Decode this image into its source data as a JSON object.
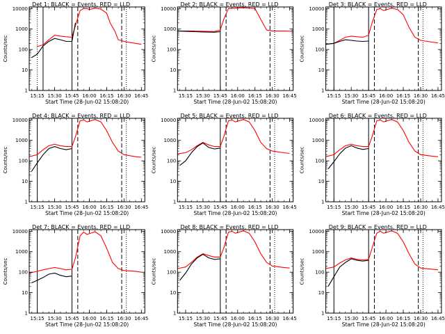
{
  "chart_data": [
    {
      "type": "line",
      "title": "Det 1: BLACK = Events, RED = LLD",
      "xlabel": "Start Time (28-Jun-02 15:08:20)",
      "ylabel": "Counts/sec",
      "yscale": "log",
      "ylim": [
        1,
        12000
      ],
      "xlim": [
        "15:08",
        "16:48"
      ],
      "xticks": [
        "15:15",
        "15:30",
        "15:45",
        "16:00",
        "16:15",
        "16:30",
        "16:45"
      ],
      "yticks": [
        "1",
        "10",
        "100",
        "1000",
        "10000"
      ],
      "series": [
        {
          "color": "#ff0000",
          "x": [
            "15:15",
            "15:20",
            "15:25",
            "15:30",
            "15:35",
            "15:40",
            "15:45",
            "15:48",
            "15:52",
            "15:55",
            "15:58",
            "16:00",
            "16:05",
            "16:10",
            "16:15",
            "16:18",
            "16:22",
            "16:25",
            "16:30",
            "16:35",
            "16:40",
            "16:45"
          ],
          "y": [
            140,
            170,
            300,
            500,
            450,
            420,
            400,
            1500,
            8000,
            10000,
            10000,
            9000,
            10500,
            9500,
            6000,
            2000,
            800,
            300,
            250,
            220,
            200,
            180
          ]
        },
        {
          "color": "#000000",
          "x": [
            "15:10",
            "15:15",
            "15:20",
            "15:25",
            "15:30",
            "15:35",
            "15:40",
            "15:45",
            "15:48"
          ],
          "y": [
            40,
            60,
            150,
            250,
            350,
            300,
            250,
            250,
            2000
          ]
        }
      ],
      "vlines_solid": [
        "15:20",
        "15:45"
      ],
      "vlines_dashed": [
        "15:50",
        "16:28"
      ],
      "vlines_dotted": [
        "15:15",
        "16:32"
      ]
    },
    {
      "type": "line",
      "title": "Det 2: BLACK = Events, RED = LLD",
      "xlabel": "Start Time (28-Jun-02 15:08:20)",
      "ylabel": "Counts/sec",
      "yscale": "log",
      "ylim": [
        1,
        12000
      ],
      "xlim": [
        "15:08",
        "16:48"
      ],
      "xticks": [
        "15:15",
        "15:30",
        "15:45",
        "16:00",
        "16:15",
        "16:30",
        "16:45"
      ],
      "yticks": [
        "1",
        "10",
        "100",
        "1000",
        "10000"
      ],
      "series": [
        {
          "color": "#ff0000",
          "x": [
            "15:08",
            "15:20",
            "15:30",
            "15:40",
            "15:45",
            "15:48",
            "15:52",
            "16:05",
            "16:15",
            "16:20",
            "16:25",
            "16:30",
            "16:40",
            "16:48"
          ],
          "y": [
            800,
            800,
            780,
            760,
            900,
            3000,
            10000,
            11000,
            10000,
            3000,
            900,
            800,
            800,
            780
          ]
        },
        {
          "color": "#000000",
          "x": [
            "15:08",
            "15:20",
            "15:30",
            "15:40",
            "15:45"
          ],
          "y": [
            800,
            760,
            720,
            700,
            750
          ]
        }
      ],
      "vlines_solid": [
        "15:45"
      ],
      "vlines_dashed": [
        "15:50",
        "16:28"
      ],
      "vlines_dotted": [
        "16:32"
      ]
    },
    {
      "type": "line",
      "title": "Det 3: BLACK = Events, RED = LLD",
      "xlabel": "Start Time (28-Jun-02 15:08:20)",
      "ylabel": "Counts/sec",
      "yscale": "log",
      "ylim": [
        1,
        12000
      ],
      "xlim": [
        "15:08",
        "16:48"
      ],
      "xticks": [
        "15:15",
        "15:30",
        "15:45",
        "16:00",
        "16:15",
        "16:30",
        "16:45"
      ],
      "yticks": [
        "1",
        "10",
        "100",
        "1000",
        "10000"
      ],
      "series": [
        {
          "color": "#ff0000",
          "x": [
            "15:08",
            "15:15",
            "15:20",
            "15:25",
            "15:30",
            "15:35",
            "15:40",
            "15:45",
            "15:48",
            "15:52",
            "15:55",
            "15:58",
            "16:05",
            "16:10",
            "16:15",
            "16:20",
            "16:25",
            "16:30",
            "16:40",
            "16:45"
          ],
          "y": [
            180,
            200,
            280,
            400,
            450,
            420,
            400,
            500,
            2000,
            9000,
            10000,
            8000,
            10500,
            9000,
            5000,
            1200,
            400,
            280,
            230,
            210
          ]
        },
        {
          "color": "#000000",
          "x": [
            "15:08",
            "15:15",
            "15:20",
            "15:25",
            "15:30",
            "15:35",
            "15:40",
            "15:45"
          ],
          "y": [
            180,
            200,
            250,
            300,
            280,
            260,
            250,
            260
          ]
        }
      ],
      "vlines_solid": [
        "15:15",
        "15:45"
      ],
      "vlines_dashed": [
        "15:50",
        "16:28"
      ],
      "vlines_dotted": [
        "16:32"
      ]
    },
    {
      "type": "line",
      "title": "Det 4: BLACK = Events, RED = LLD",
      "xlabel": "Start Time (28-Jun-02 15:08:20)",
      "ylabel": "Counts/sec",
      "yscale": "log",
      "ylim": [
        1,
        12000
      ],
      "xlim": [
        "15:08",
        "16:48"
      ],
      "xticks": [
        "15:15",
        "15:30",
        "15:45",
        "16:00",
        "16:15",
        "16:30",
        "16:45"
      ],
      "yticks": [
        "1",
        "10",
        "100",
        "1000",
        "10000"
      ],
      "series": [
        {
          "color": "#ff0000",
          "x": [
            "15:08",
            "15:15",
            "15:20",
            "15:25",
            "15:30",
            "15:35",
            "15:40",
            "15:45",
            "15:48",
            "15:52",
            "15:55",
            "15:58",
            "16:05",
            "16:10",
            "16:15",
            "16:20",
            "16:25",
            "16:30",
            "16:40",
            "16:45"
          ],
          "y": [
            160,
            200,
            350,
            550,
            650,
            550,
            500,
            500,
            1500,
            9000,
            10000,
            8000,
            10500,
            8000,
            3000,
            800,
            300,
            200,
            160,
            150
          ]
        },
        {
          "color": "#000000",
          "x": [
            "15:10",
            "15:15",
            "15:20",
            "15:25",
            "15:30",
            "15:35",
            "15:40",
            "15:45"
          ],
          "y": [
            30,
            80,
            200,
            400,
            500,
            400,
            350,
            400
          ]
        }
      ],
      "vlines_solid": [
        "15:15",
        "15:45"
      ],
      "vlines_dashed": [
        "15:50",
        "16:28"
      ],
      "vlines_dotted": [
        "16:32"
      ]
    },
    {
      "type": "line",
      "title": "Det 5: BLACK = Events, RED = LLD",
      "xlabel": "Start Time (28-Jun-02 15:08:20)",
      "ylabel": "Counts/sec",
      "yscale": "log",
      "ylim": [
        1,
        12000
      ],
      "xlim": [
        "15:08",
        "16:48"
      ],
      "xticks": [
        "15:15",
        "15:30",
        "15:45",
        "16:00",
        "16:15",
        "16:30",
        "16:45"
      ],
      "yticks": [
        "1",
        "10",
        "100",
        "1000",
        "10000"
      ],
      "series": [
        {
          "color": "#ff0000",
          "x": [
            "15:08",
            "15:15",
            "15:20",
            "15:25",
            "15:30",
            "15:35",
            "15:40",
            "15:45",
            "15:48",
            "15:52",
            "15:55",
            "15:58",
            "16:05",
            "16:10",
            "16:15",
            "16:20",
            "16:25",
            "16:30",
            "16:40",
            "16:45"
          ],
          "y": [
            220,
            250,
            350,
            550,
            800,
            600,
            500,
            500,
            1500,
            9000,
            10000,
            8000,
            10500,
            8000,
            3000,
            800,
            400,
            300,
            250,
            230
          ]
        },
        {
          "color": "#000000",
          "x": [
            "15:10",
            "15:15",
            "15:20",
            "15:25",
            "15:30",
            "15:35",
            "15:40",
            "15:45"
          ],
          "y": [
            60,
            100,
            250,
            500,
            750,
            450,
            380,
            420
          ]
        }
      ],
      "vlines_solid": [
        "15:45"
      ],
      "vlines_dashed": [
        "15:50",
        "16:28"
      ],
      "vlines_dotted": [
        "16:32"
      ]
    },
    {
      "type": "line",
      "title": "Det 6: BLACK = Events, RED = LLD",
      "xlabel": "Start Time (28-Jun-02 15:08:20)",
      "ylabel": "Counts/sec",
      "yscale": "log",
      "ylim": [
        1,
        12000
      ],
      "xlim": [
        "15:08",
        "16:48"
      ],
      "xticks": [
        "15:15",
        "15:30",
        "15:45",
        "16:00",
        "16:15",
        "16:30",
        "16:45"
      ],
      "yticks": [
        "1",
        "10",
        "100",
        "1000",
        "10000"
      ],
      "series": [
        {
          "color": "#ff0000",
          "x": [
            "15:08",
            "15:15",
            "15:20",
            "15:25",
            "15:30",
            "15:35",
            "15:40",
            "15:45",
            "15:48",
            "15:52",
            "15:55",
            "15:58",
            "16:05",
            "16:10",
            "16:15",
            "16:20",
            "16:25",
            "16:30",
            "16:40",
            "16:45"
          ],
          "y": [
            160,
            200,
            350,
            550,
            650,
            550,
            500,
            500,
            1500,
            9000,
            10000,
            8000,
            10500,
            8000,
            3000,
            800,
            300,
            200,
            170,
            160
          ]
        },
        {
          "color": "#000000",
          "x": [
            "15:10",
            "15:15",
            "15:20",
            "15:25",
            "15:30",
            "15:35",
            "15:40",
            "15:45"
          ],
          "y": [
            40,
            90,
            220,
            420,
            550,
            420,
            360,
            400
          ]
        }
      ],
      "vlines_solid": [
        "15:15",
        "15:45"
      ],
      "vlines_dashed": [
        "15:50",
        "16:28"
      ],
      "vlines_dotted": [
        "16:32"
      ]
    },
    {
      "type": "line",
      "title": "Det 7: BLACK = Events, RED = LLD",
      "xlabel": "Start Time (28-Jun-02 15:08:20)",
      "ylabel": "Counts/sec",
      "yscale": "log",
      "ylim": [
        1,
        12000
      ],
      "xlim": [
        "15:08",
        "16:48"
      ],
      "xticks": [
        "15:15",
        "15:30",
        "15:45",
        "16:00",
        "16:15",
        "16:30",
        "16:45"
      ],
      "yticks": [
        "1",
        "10",
        "100",
        "1000",
        "10000"
      ],
      "series": [
        {
          "color": "#ff0000",
          "x": [
            "15:08",
            "15:15",
            "15:20",
            "15:25",
            "15:30",
            "15:35",
            "15:40",
            "15:45",
            "15:48",
            "15:52",
            "15:55",
            "15:58",
            "16:05",
            "16:10",
            "16:15",
            "16:20",
            "16:25",
            "16:30",
            "16:40",
            "16:45"
          ],
          "y": [
            90,
            110,
            130,
            150,
            170,
            150,
            130,
            140,
            500,
            6000,
            9000,
            7000,
            9500,
            6000,
            1500,
            300,
            150,
            120,
            110,
            100
          ]
        },
        {
          "color": "#000000",
          "x": [
            "15:10",
            "15:15",
            "15:20",
            "15:25",
            "15:30",
            "15:35",
            "15:40",
            "15:45"
          ],
          "y": [
            30,
            40,
            55,
            80,
            90,
            70,
            60,
            65
          ]
        }
      ],
      "vlines_solid": [
        "15:15",
        "15:45"
      ],
      "vlines_dashed": [
        "15:50",
        "16:28"
      ],
      "vlines_dotted": [
        "16:32"
      ]
    },
    {
      "type": "line",
      "title": "Det 8: BLACK = Events, RED = LLD",
      "xlabel": "Start Time (28-Jun-02 15:08:20)",
      "ylabel": "Counts/sec",
      "yscale": "log",
      "ylim": [
        1,
        12000
      ],
      "xlim": [
        "15:08",
        "16:48"
      ],
      "xticks": [
        "15:15",
        "15:30",
        "15:45",
        "16:00",
        "16:15",
        "16:30",
        "16:45"
      ],
      "yticks": [
        "1",
        "10",
        "100",
        "1000",
        "10000"
      ],
      "series": [
        {
          "color": "#ff0000",
          "x": [
            "15:08",
            "15:15",
            "15:20",
            "15:25",
            "15:30",
            "15:35",
            "15:40",
            "15:45",
            "15:48",
            "15:52",
            "15:55",
            "15:58",
            "16:05",
            "16:10",
            "16:15",
            "16:20",
            "16:25",
            "16:30",
            "16:40",
            "16:45"
          ],
          "y": [
            150,
            180,
            300,
            550,
            800,
            650,
            550,
            550,
            1500,
            9000,
            10000,
            8000,
            10500,
            8000,
            3000,
            800,
            300,
            200,
            170,
            160
          ]
        },
        {
          "color": "#000000",
          "x": [
            "15:10",
            "15:15",
            "15:20",
            "15:25",
            "15:30",
            "15:35",
            "15:40",
            "15:45"
          ],
          "y": [
            40,
            90,
            250,
            500,
            750,
            500,
            420,
            450
          ]
        }
      ],
      "vlines_solid": [
        "15:45"
      ],
      "vlines_dashed": [
        "15:50",
        "16:28"
      ],
      "vlines_dotted": [
        "16:32"
      ]
    },
    {
      "type": "line",
      "title": "Det 9: BLACK = Events, RED = LLD",
      "xlabel": "Start Time (28-Jun-02 15:08:20)",
      "ylabel": "Counts/sec",
      "yscale": "log",
      "ylim": [
        1,
        12000
      ],
      "xlim": [
        "15:08",
        "16:48"
      ],
      "xticks": [
        "15:15",
        "15:30",
        "15:45",
        "16:00",
        "16:15",
        "16:30",
        "16:45"
      ],
      "yticks": [
        "1",
        "10",
        "100",
        "1000",
        "10000"
      ],
      "series": [
        {
          "color": "#ff0000",
          "x": [
            "15:08",
            "15:15",
            "15:20",
            "15:25",
            "15:30",
            "15:35",
            "15:40",
            "15:45",
            "15:48",
            "15:52",
            "15:55",
            "15:58",
            "16:05",
            "16:10",
            "16:15",
            "16:20",
            "16:25",
            "16:30",
            "16:40",
            "16:45"
          ],
          "y": [
            150,
            180,
            280,
            400,
            500,
            420,
            400,
            420,
            1500,
            8000,
            10000,
            8000,
            10500,
            8000,
            3000,
            800,
            250,
            160,
            140,
            130
          ]
        },
        {
          "color": "#000000",
          "x": [
            "15:10",
            "15:15",
            "15:20",
            "15:25",
            "15:30",
            "15:35",
            "15:40",
            "15:45"
          ],
          "y": [
            20,
            60,
            180,
            300,
            450,
            380,
            350,
            380
          ]
        }
      ],
      "vlines_solid": [
        "15:15",
        "15:45"
      ],
      "vlines_dashed": [
        "15:50",
        "16:28"
      ],
      "vlines_dotted": [
        "16:32"
      ]
    }
  ]
}
